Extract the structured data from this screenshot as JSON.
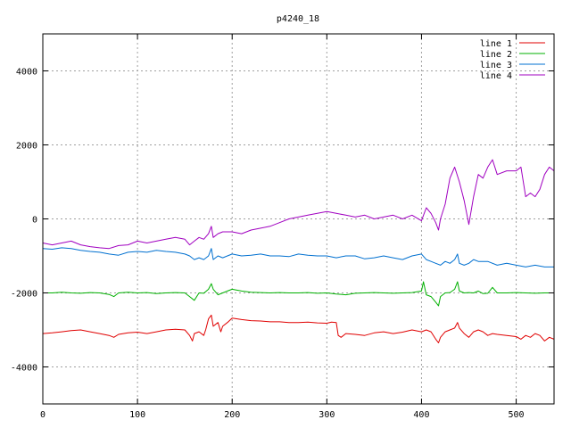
{
  "chart_data": {
    "type": "line",
    "title": "p4240_18",
    "xlabel": "",
    "ylabel": "",
    "xlim": [
      0,
      540
    ],
    "ylim": [
      -5000,
      5000
    ],
    "x_ticks": [
      0,
      100,
      200,
      300,
      400,
      500
    ],
    "y_ticks": [
      -4000,
      -2000,
      0,
      2000,
      4000
    ],
    "grid": true,
    "legend_position": "top-right",
    "series": [
      {
        "name": "line 1",
        "color": "#e00000",
        "x": [
          0,
          10,
          20,
          30,
          40,
          50,
          60,
          70,
          75,
          80,
          90,
          100,
          110,
          120,
          130,
          140,
          150,
          155,
          158,
          160,
          165,
          170,
          172,
          175,
          178,
          180,
          185,
          188,
          190,
          195,
          200,
          210,
          220,
          230,
          240,
          250,
          260,
          270,
          280,
          290,
          300,
          305,
          310,
          312,
          315,
          320,
          330,
          340,
          350,
          360,
          370,
          380,
          390,
          400,
          405,
          410,
          415,
          418,
          420,
          425,
          430,
          435,
          438,
          440,
          445,
          450,
          455,
          460,
          465,
          470,
          475,
          480,
          490,
          500,
          505,
          510,
          515,
          520,
          525,
          530,
          535,
          540
        ],
        "y": [
          -3100,
          -3080,
          -3050,
          -3020,
          -3000,
          -3050,
          -3100,
          -3150,
          -3200,
          -3120,
          -3080,
          -3060,
          -3100,
          -3050,
          -3000,
          -2980,
          -3000,
          -3150,
          -3300,
          -3100,
          -3050,
          -3150,
          -3000,
          -2700,
          -2600,
          -2900,
          -2800,
          -3050,
          -2900,
          -2800,
          -2680,
          -2720,
          -2750,
          -2760,
          -2780,
          -2780,
          -2800,
          -2800,
          -2790,
          -2810,
          -2820,
          -2790,
          -2800,
          -3150,
          -3200,
          -3100,
          -3120,
          -3150,
          -3080,
          -3050,
          -3100,
          -3060,
          -3000,
          -3050,
          -3000,
          -3050,
          -3250,
          -3350,
          -3200,
          -3050,
          -3000,
          -2950,
          -2800,
          -2950,
          -3100,
          -3200,
          -3050,
          -3000,
          -3050,
          -3150,
          -3100,
          -3120,
          -3150,
          -3180,
          -3250,
          -3150,
          -3200,
          -3100,
          -3150,
          -3300,
          -3200,
          -3250
        ]
      },
      {
        "name": "line 2",
        "color": "#00b000",
        "x": [
          0,
          10,
          20,
          30,
          40,
          50,
          60,
          70,
          75,
          80,
          90,
          100,
          110,
          120,
          130,
          140,
          150,
          155,
          160,
          165,
          170,
          175,
          178,
          180,
          185,
          190,
          195,
          200,
          210,
          220,
          230,
          240,
          250,
          260,
          270,
          280,
          290,
          300,
          310,
          320,
          330,
          340,
          350,
          360,
          370,
          380,
          390,
          400,
          402,
          405,
          410,
          415,
          418,
          420,
          425,
          430,
          435,
          438,
          440,
          445,
          450,
          455,
          460,
          465,
          470,
          475,
          480,
          490,
          500,
          510,
          520,
          530,
          540
        ],
        "y": [
          -2000,
          -2000,
          -1980,
          -2000,
          -2010,
          -1990,
          -2000,
          -2040,
          -2100,
          -2000,
          -1980,
          -2000,
          -1990,
          -2020,
          -2000,
          -1990,
          -2000,
          -2100,
          -2200,
          -2000,
          -2010,
          -1900,
          -1750,
          -1900,
          -2050,
          -2000,
          -1950,
          -1900,
          -1950,
          -1980,
          -1990,
          -2000,
          -1990,
          -2000,
          -2000,
          -1990,
          -2010,
          -2000,
          -2030,
          -2050,
          -2010,
          -2000,
          -1990,
          -2000,
          -2010,
          -2000,
          -1990,
          -1950,
          -1700,
          -2050,
          -2100,
          -2250,
          -2350,
          -2100,
          -2000,
          -1990,
          -1900,
          -1700,
          -1950,
          -2000,
          -1990,
          -2000,
          -1950,
          -2020,
          -2010,
          -1850,
          -2000,
          -2000,
          -1990,
          -2000,
          -2010,
          -2000,
          -2000
        ]
      },
      {
        "name": "line 3",
        "color": "#0070d0",
        "x": [
          0,
          10,
          20,
          30,
          40,
          50,
          60,
          70,
          80,
          90,
          100,
          110,
          120,
          130,
          140,
          150,
          155,
          160,
          165,
          170,
          175,
          178,
          180,
          185,
          190,
          195,
          200,
          210,
          220,
          230,
          240,
          250,
          260,
          270,
          280,
          290,
          300,
          310,
          320,
          330,
          340,
          350,
          360,
          370,
          380,
          390,
          400,
          405,
          410,
          415,
          420,
          425,
          430,
          435,
          438,
          440,
          445,
          450,
          455,
          460,
          470,
          480,
          490,
          500,
          510,
          520,
          530,
          540
        ],
        "y": [
          -800,
          -820,
          -780,
          -800,
          -850,
          -880,
          -900,
          -950,
          -980,
          -900,
          -880,
          -900,
          -850,
          -880,
          -900,
          -950,
          -1000,
          -1100,
          -1050,
          -1100,
          -1000,
          -800,
          -1100,
          -1000,
          -1050,
          -1000,
          -950,
          -1000,
          -980,
          -950,
          -1000,
          -1000,
          -1020,
          -950,
          -980,
          -1000,
          -1000,
          -1050,
          -1000,
          -1000,
          -1080,
          -1050,
          -1000,
          -1050,
          -1100,
          -1000,
          -950,
          -1100,
          -1150,
          -1200,
          -1250,
          -1150,
          -1200,
          -1100,
          -950,
          -1200,
          -1250,
          -1200,
          -1100,
          -1150,
          -1150,
          -1250,
          -1200,
          -1250,
          -1300,
          -1250,
          -1300,
          -1300
        ]
      },
      {
        "name": "line 4",
        "color": "#a000c0",
        "x": [
          0,
          10,
          20,
          30,
          40,
          50,
          60,
          70,
          80,
          90,
          100,
          110,
          120,
          130,
          140,
          150,
          155,
          160,
          165,
          170,
          175,
          178,
          180,
          185,
          190,
          200,
          210,
          220,
          230,
          240,
          250,
          260,
          270,
          280,
          290,
          300,
          310,
          320,
          330,
          340,
          350,
          360,
          370,
          380,
          390,
          400,
          405,
          410,
          415,
          418,
          420,
          425,
          430,
          435,
          440,
          445,
          450,
          455,
          460,
          465,
          470,
          475,
          480,
          490,
          500,
          505,
          510,
          515,
          520,
          525,
          530,
          535,
          540
        ],
        "y": [
          -650,
          -700,
          -650,
          -600,
          -700,
          -750,
          -780,
          -800,
          -720,
          -700,
          -600,
          -650,
          -600,
          -550,
          -500,
          -550,
          -700,
          -600,
          -500,
          -550,
          -400,
          -200,
          -500,
          -400,
          -350,
          -350,
          -400,
          -300,
          -250,
          -200,
          -100,
          0,
          50,
          100,
          150,
          200,
          150,
          100,
          50,
          100,
          0,
          50,
          100,
          0,
          100,
          -50,
          300,
          150,
          -100,
          -300,
          0,
          400,
          1100,
          1400,
          1000,
          500,
          -150,
          600,
          1200,
          1100,
          1400,
          1600,
          1200,
          1300,
          1300,
          1400,
          600,
          700,
          600,
          800,
          1200,
          1400,
          1300
        ]
      }
    ]
  }
}
